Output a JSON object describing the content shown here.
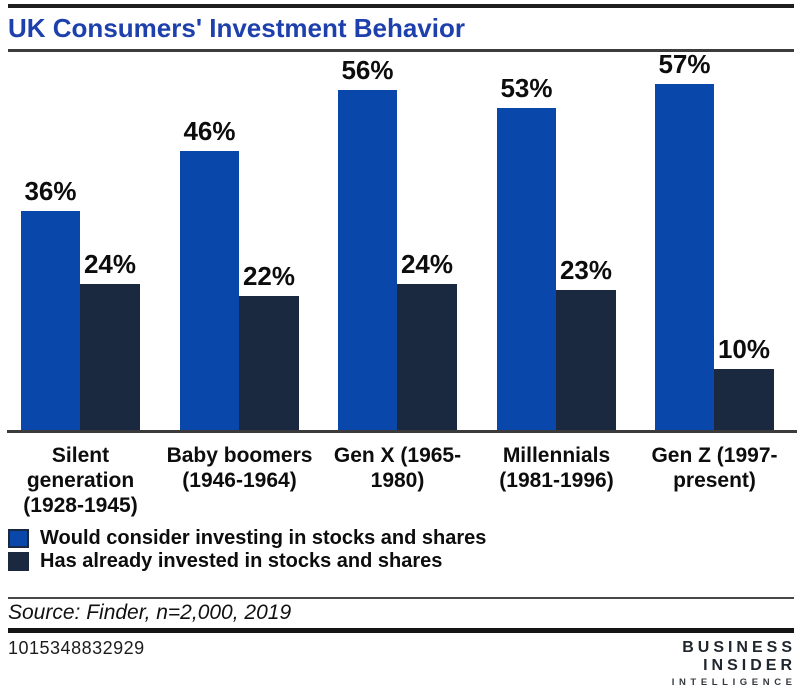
{
  "header": {
    "title": "UK Consumers' Investment Behavior"
  },
  "chart_data": {
    "type": "bar",
    "title": "UK Consumers' Investment Behavior",
    "categories": [
      "Silent generation (1928-1945)",
      "Baby boomers (1946-1964)",
      "Gen X (1965-1980)",
      "Millennials (1981-1996)",
      "Gen Z (1997-present)"
    ],
    "series": [
      {
        "name": "Would consider investing in stocks and shares",
        "color": "#0a47ab",
        "values": [
          36,
          46,
          56,
          53,
          57
        ]
      },
      {
        "name": "Has already invested in stocks and shares",
        "color": "#1a2940",
        "values": [
          24,
          22,
          24,
          23,
          10
        ]
      }
    ],
    "value_suffix": "%",
    "value_labels": "above-bars",
    "ylim": [
      0,
      62
    ],
    "grid": false,
    "legend_position": "below-chart-left",
    "xlabel": "",
    "ylabel": ""
  },
  "footer": {
    "source": "Source: Finder, n=2,000, 2019",
    "figure_id": "1015348832929",
    "logo_line1": "BUSINESS",
    "logo_line2": "INSIDER",
    "logo_line3": "INTELLIGENCE"
  },
  "colors": {
    "title_blue": "#1d40ad",
    "bar_blue": "#0a47ab",
    "bar_navy": "#1a2940",
    "rule_dark": "#1f1f1f",
    "axis_gray": "#3c3c3c"
  }
}
